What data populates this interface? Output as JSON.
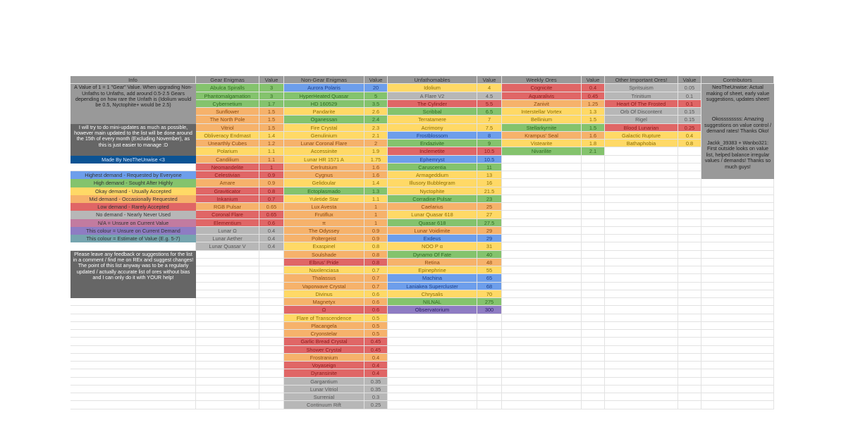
{
  "colors": {
    "green": "#84c36d",
    "yellow": "#ffd966",
    "orange": "#f6b26b",
    "red": "#e06666",
    "blue": "#6d9eeb",
    "gray": "#b7b7b7",
    "purple": "#8e7cc3",
    "teal": "#76a5af",
    "pink": "#c27ba0",
    "info_gray": "#999999",
    "info_dark": "#666666",
    "made_by": "#0b5394"
  },
  "text_colors": {
    "green": "#2f6b1f",
    "yellow": "#8a6d00",
    "orange": "#8a4a10",
    "red": "#8b1a1a",
    "blue": "#1c3f8a",
    "gray": "#555555",
    "purple": "#2d1f66"
  },
  "headers": {
    "info": "Info",
    "gear": "Gear Enigmas",
    "nongear": "Non-Gear Enigmas",
    "unfath": "Unfathomables",
    "weekly": "Weekly Ores",
    "other": "Other Important Ores!",
    "value": "Value",
    "contributors": "Contributors"
  },
  "info": {
    "note1": "A Value of 1 = 1 \"Gear\" Value. When upgrading Non-Unfaths to Unfaths, add around 0.5-2.5 Gears depending on how rare the Unfath is (Idolium would be 0.5, Nyctophite+ would be 2.5)",
    "note2": "I will try to do mini-updates as much as possible, however main updated to the list will be done around the 15th of every month (Excluding November), as this is just easier to manage :D",
    "made_by": "Made By NeoTheUnwise <3",
    "legend": [
      {
        "text": "Highest demand - Requested by Everyone",
        "color": "blue"
      },
      {
        "text": "High demand - Sought After Highly",
        "color": "green"
      },
      {
        "text": "Okay demand - Usually Accepted",
        "color": "yellow"
      },
      {
        "text": "Mid demand - Occasionally Requested",
        "color": "orange"
      },
      {
        "text": "Low demand - Rarely Accepted",
        "color": "red"
      },
      {
        "text": "No demand - Nearly Never Used",
        "color": "gray"
      },
      {
        "text": "N/A = Unsure on Current Value",
        "color": "pink"
      },
      {
        "text": "This colour = Unsure on Current Demand",
        "color": "purple"
      },
      {
        "text": "This colour = Estimate of Value (E.g. 5-7)",
        "color": "teal"
      }
    ],
    "feedback": "Please leave any feedback or suggestions for the list in a comment / find me on REx and suggest changes! The point of this list anyway was to be a regularly updated / actually accurate list of ores without bias and I can only do it with YOUR help!"
  },
  "gear": [
    [
      "Abulca Spiralls",
      "3",
      "green"
    ],
    [
      "Phantomalgamation",
      "3",
      "green"
    ],
    [
      "Cybernetium",
      "1.7",
      "green"
    ],
    [
      "Sunflower",
      "1.5",
      "orange"
    ],
    [
      "The North Pole",
      "1.5",
      "orange"
    ],
    [
      "Vitriol",
      "1.5",
      "orange"
    ],
    [
      "Obliveracy Endmast",
      "1.4",
      "yellow"
    ],
    [
      "Unearthly Cubes",
      "1.2",
      "orange"
    ],
    [
      "Polarium",
      "1.1",
      "yellow"
    ],
    [
      "Candilium",
      "1.1",
      "orange"
    ],
    [
      "Neomandelite",
      "1",
      "red"
    ],
    [
      "Celestivian",
      "0.9",
      "red"
    ],
    [
      "Amare",
      "0.9",
      "orange"
    ],
    [
      "Graviticator",
      "0.8",
      "red"
    ],
    [
      "Inkanium",
      "0.7",
      "red"
    ],
    [
      "RGB Pulsar",
      "0.65",
      "orange"
    ],
    [
      "Coronal Flare",
      "0.65",
      "red"
    ],
    [
      "Elementium",
      "0.6",
      "red"
    ],
    [
      "Lunar Ω",
      "0.4",
      "gray"
    ],
    [
      "Lunar Aether",
      "0.4",
      "gray"
    ],
    [
      "Lunar Quasar V",
      "0.4",
      "gray"
    ]
  ],
  "nongear": [
    [
      "Aurora Polaris",
      "20",
      "blue"
    ],
    [
      "HyperHeated Quasar",
      "5",
      "green"
    ],
    [
      "HD 160529",
      "3.5",
      "green"
    ],
    [
      "Pandarite",
      "2.6",
      "yellow"
    ],
    [
      "Oganessan",
      "2.4",
      "green"
    ],
    [
      "Fire Crystal",
      "2.3",
      "yellow"
    ],
    [
      "Genulinium",
      "2.1",
      "yellow"
    ],
    [
      "Lunar Coronal Flare",
      "2",
      "orange"
    ],
    [
      "Accessinite",
      "1.9",
      "yellow"
    ],
    [
      "Lunar HR 1571 A",
      "1.75",
      "yellow"
    ],
    [
      "Cerlrutsium",
      "1.6",
      "orange"
    ],
    [
      "Cygnus",
      "1.6",
      "orange"
    ],
    [
      "Gelidoular",
      "1.4",
      "yellow"
    ],
    [
      "Ectoplasmado",
      "1.3",
      "green"
    ],
    [
      "Yuletide Star",
      "1.1",
      "yellow"
    ],
    [
      "Lux Avesta",
      "1",
      "orange"
    ],
    [
      "Frutiflux",
      "1",
      "orange"
    ],
    [
      "π",
      "1",
      "orange"
    ],
    [
      "The Odyssey",
      "0.9",
      "orange"
    ],
    [
      "Poltergeist",
      "0.9",
      "orange"
    ],
    [
      "Exaspinel",
      "0.8",
      "yellow"
    ],
    [
      "Soulshade",
      "0.8",
      "orange"
    ],
    [
      "Elbrus' Pride",
      "0.8",
      "red"
    ],
    [
      "Naxilenciasa",
      "0.7",
      "yellow"
    ],
    [
      "Thalassus",
      "0.7",
      "orange"
    ],
    [
      "Vaporwave Crystal",
      "0.7",
      "orange"
    ],
    [
      "Divinus",
      "0.6",
      "yellow"
    ],
    [
      "Magnetyx",
      "0.6",
      "orange"
    ],
    [
      "Ω",
      "0.6",
      "red"
    ],
    [
      "Flare of Transcendence",
      "0.5",
      "yellow"
    ],
    [
      "Placangela",
      "0.5",
      "orange"
    ],
    [
      "Cryonstelar",
      "0.5",
      "orange"
    ],
    [
      "Garlic Bread Crystal",
      "0.45",
      "red"
    ],
    [
      "Shower Crystal",
      "0.45",
      "red"
    ],
    [
      "Frostranium",
      "0.4",
      "orange"
    ],
    [
      "Voyaseign",
      "0.4",
      "red"
    ],
    [
      "Dyransinite",
      "0.4",
      "red"
    ],
    [
      "Gargantium",
      "0.35",
      "gray"
    ],
    [
      "Lunar Vitriol",
      "0.35",
      "gray"
    ],
    [
      "Surrenial",
      "0.3",
      "gray"
    ],
    [
      "Continuum Rift",
      "0.25",
      "gray"
    ]
  ],
  "unfath": [
    [
      "Idolium",
      "4",
      "yellow"
    ],
    [
      "A Flare V2",
      "4.5",
      "gray"
    ],
    [
      "The Cylinder",
      "5.5",
      "red"
    ],
    [
      "Scribbal",
      "6.5",
      "green"
    ],
    [
      "Terratamere",
      "7",
      "yellow"
    ],
    [
      "Acrimony",
      "7.5",
      "yellow"
    ],
    [
      "Frostblossom",
      "8",
      "blue"
    ],
    [
      "Endazivite",
      "9",
      "green"
    ],
    [
      "Inclemetite",
      "10.5",
      "red"
    ],
    [
      "Ephemryst",
      "10.5",
      "blue"
    ],
    [
      "Caruscentia",
      "11",
      "green"
    ],
    [
      "Armageddium",
      "13",
      "yellow"
    ],
    [
      "Illusory Bubblegram",
      "16",
      "yellow"
    ],
    [
      "Nyctophite",
      "21.5",
      "yellow"
    ],
    [
      "Corradine Pulsar",
      "23",
      "green"
    ],
    [
      "Caelarius",
      "25",
      "orange"
    ],
    [
      "Lunar Quasar 618",
      "27",
      "yellow"
    ],
    [
      "Quasar 618",
      "27.5",
      "green"
    ],
    [
      "Lunar Voidimite",
      "29",
      "orange"
    ],
    [
      "Exdeus",
      "29",
      "blue"
    ],
    [
      "NOO P α",
      "31",
      "yellow"
    ],
    [
      "Dynamo Of Fate",
      "40",
      "green"
    ],
    [
      "Retina",
      "48",
      "orange"
    ],
    [
      "Epinephrine",
      "55",
      "yellow"
    ],
    [
      "Machina",
      "65",
      "blue"
    ],
    [
      "Laniakea Supercluster",
      "68",
      "blue"
    ],
    [
      "Chrysalis",
      "70",
      "yellow"
    ],
    [
      "NILNAL",
      "275",
      "green"
    ],
    [
      "Observatorium",
      "300",
      "purple"
    ]
  ],
  "weekly": [
    [
      "Cognicite",
      "0.4",
      "red"
    ],
    [
      "Aquaralivis",
      "0.45",
      "red"
    ],
    [
      "Zanivit",
      "1.25",
      "orange"
    ],
    [
      "Interstellar Vortex",
      "1.3",
      "yellow"
    ],
    [
      "Bellinium",
      "1.5",
      "yellow"
    ],
    [
      "Stellarkyrnite",
      "1.5",
      "green"
    ],
    [
      "Krampus' Seal",
      "1.6",
      "orange"
    ],
    [
      "Vistearite",
      "1.8",
      "yellow"
    ],
    [
      "Nivarilite",
      "2.1",
      "green"
    ]
  ],
  "other": [
    [
      "Spritsuism",
      "0.05",
      "gray"
    ],
    [
      "Trinitium",
      "0.1",
      "gray"
    ],
    [
      "Heart Of The Frosted",
      "0.1",
      "red"
    ],
    [
      "Orb Of Discontent",
      "0.15",
      "gray"
    ],
    [
      "Rigel",
      "0.15",
      "gray"
    ],
    [
      "Blood Lunarian",
      "0.25",
      "red"
    ],
    [
      "Galactic Rupture",
      "0.4",
      "yellow"
    ],
    [
      "Bathaphobia",
      "0.8",
      "yellow"
    ]
  ],
  "contributors": [
    "NeoTheUnwise: Actual making of sheet, early value suggestions, updates sheet!",
    "Okossssssss: Amazing suggestions on value control / demand rates! Thanks Oko!",
    "Jackk_39383 + Wanbo321: First outside looks on value list, helped balance irregular values / demands! Thanks so much guys!"
  ]
}
